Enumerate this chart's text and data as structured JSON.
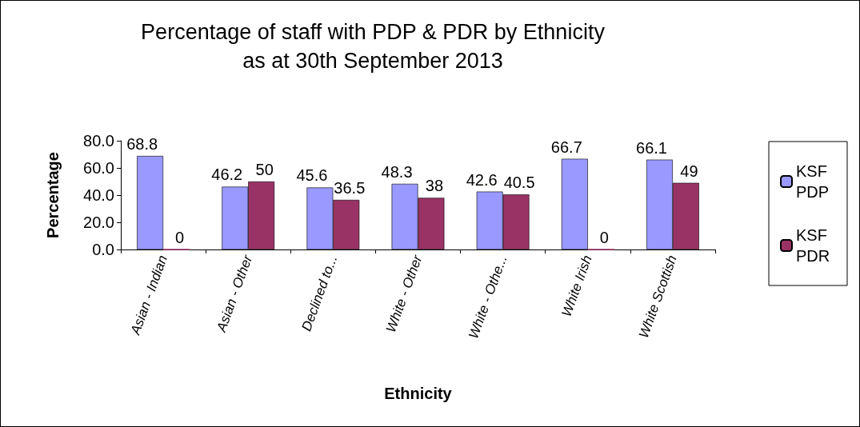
{
  "chart_data": {
    "type": "bar",
    "title": "Percentage of staff with PDP & PDR by Ethnicity\nas at 30th September 2013",
    "xlabel": "Ethnicity",
    "ylabel": "Percentage",
    "categories": [
      "Asian - Indian",
      "Asian - Other",
      "Declined to...",
      "White - Other",
      "White - Othe...",
      "White Irish",
      "White Scottish"
    ],
    "series": [
      {
        "name": "KSF PDP",
        "color": "#9999ff",
        "values": [
          68.8,
          46.2,
          45.6,
          48.3,
          42.6,
          66.7,
          66.1
        ],
        "value_labels": [
          "68.8",
          "46.2",
          "45.6",
          "48.3",
          "42.6",
          "66.7",
          "66.1"
        ]
      },
      {
        "name": "KSF PDR",
        "color": "#993366",
        "values": [
          0,
          50,
          36.5,
          38,
          40.5,
          0,
          49
        ],
        "value_labels": [
          "0",
          "50",
          "36.5",
          "38",
          "40.5",
          "0",
          "49"
        ]
      }
    ],
    "ylim": [
      0,
      80
    ],
    "yticks": [
      {
        "value": 0,
        "label": "0.0"
      },
      {
        "value": 20,
        "label": "20.0"
      },
      {
        "value": 40,
        "label": "40.0"
      },
      {
        "value": 60,
        "label": "60.0"
      },
      {
        "value": 80,
        "label": "80.0"
      }
    ],
    "grid": false,
    "legend": "right"
  }
}
